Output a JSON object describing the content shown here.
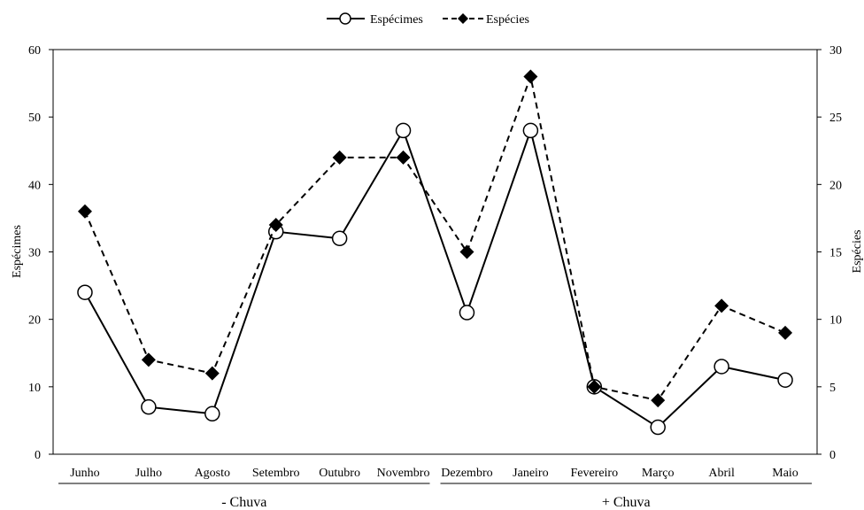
{
  "chart_data": {
    "type": "line",
    "categories": [
      "Junho",
      "Julho",
      "Agosto",
      "Setembro",
      "Outubro",
      "Novembro",
      "Dezembro",
      "Janeiro",
      "Fevereiro",
      "Março",
      "Abril",
      "Maio"
    ],
    "series": [
      {
        "name": "Espécimes",
        "axis": "left",
        "marker": "open-circle",
        "line": "solid",
        "values": [
          24,
          7,
          6,
          33,
          32,
          48,
          21,
          48,
          10,
          4,
          13,
          11
        ]
      },
      {
        "name": "Espécies",
        "axis": "right",
        "marker": "filled-diamond",
        "line": "dashed",
        "values": [
          18,
          7,
          6,
          17,
          22,
          22,
          15,
          28,
          5,
          4,
          11,
          9
        ]
      }
    ],
    "ylabel": "Espécimes",
    "y2label": "Espécies",
    "ylim": [
      0,
      60
    ],
    "y2lim": [
      0,
      30
    ],
    "yticks": [
      0,
      10,
      20,
      30,
      40,
      50,
      60
    ],
    "y2ticks": [
      0,
      5,
      10,
      15,
      20,
      25,
      30
    ],
    "groups": [
      {
        "label": "- Chuva",
        "from": "Junho",
        "to": "Novembro"
      },
      {
        "label": "+ Chuva",
        "from": "Dezembro",
        "to": "Maio"
      }
    ],
    "legend_position": "top-center",
    "grid": false
  }
}
